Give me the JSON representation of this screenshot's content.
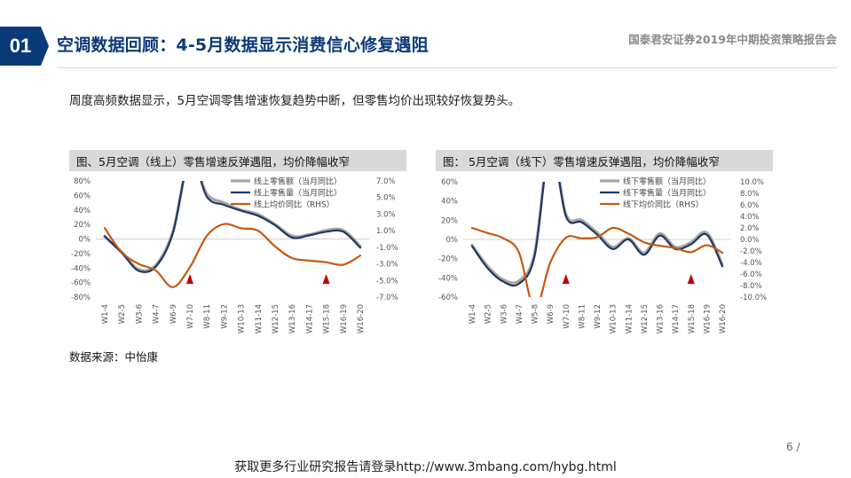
{
  "header": {
    "section_number": "01",
    "title": "空调数据回顾：4-5月数据显示消费信心修复遇阻",
    "report_name": "国泰君安证券2019年中期投资策略报告会"
  },
  "intro_text": "周度高频数据显示，5月空调零售增速恢复趋势中断，但零售均价出现较好恢复势头。",
  "source_text": "数据来源：中怡康",
  "page_number": "6 /",
  "footer_text": "获取更多行业研究报告请登录http://www.3mbang.com/hybg.html",
  "colors": {
    "amount": "#a6a6a6",
    "volume": "#1f3864",
    "price": "#c55a11",
    "marker": "#c00000",
    "brand": "#0b3a78"
  },
  "chart_data": [
    {
      "type": "line",
      "title": "图、5月空调（线上）零售增速反弹遇阻，均价降幅收窄",
      "x": [
        "W1-4",
        "W2-5",
        "W3-6",
        "W4-7",
        "W6-9",
        "W7-10",
        "W8-11",
        "W9-12",
        "W10-13",
        "W11-14",
        "W12-15",
        "W13-16",
        "W14-17",
        "W15-18",
        "W16-19",
        "W16-20"
      ],
      "left_axis": {
        "min": -80,
        "max": 80,
        "ticks": [
          "80%",
          "60%",
          "40%",
          "20%",
          "0%",
          "-20%",
          "-40%",
          "-60%",
          "-80%"
        ]
      },
      "right_axis": {
        "min": -7,
        "max": 7,
        "ticks": [
          "7.0%",
          "5.0%",
          "3.0%",
          "1.0%",
          "-1.0%",
          "-3.0%",
          "-5.0%",
          "-7.0%"
        ]
      },
      "series": [
        {
          "name": "线上零售额（当月同比）",
          "axis": "left",
          "values": [
            3,
            -18,
            -42,
            -36,
            10,
            110,
            62,
            50,
            40,
            34,
            20,
            4,
            6,
            12,
            12,
            -10
          ]
        },
        {
          "name": "线上零售量（当月同比）",
          "axis": "left",
          "values": [
            4,
            -19,
            -44,
            -38,
            8,
            112,
            58,
            47,
            39,
            32,
            19,
            2,
            5,
            10,
            10,
            -12
          ]
        },
        {
          "name": "线上均价同比（RHS）",
          "axis": "right",
          "values": [
            1.3,
            -1.6,
            -3.0,
            -3.8,
            -5.8,
            -3.4,
            0.4,
            1.8,
            1.3,
            1.0,
            -0.9,
            -2.3,
            -2.6,
            -2.8,
            -3.1,
            -2.0
          ]
        }
      ],
      "markers": [
        {
          "at": "W7-10"
        },
        {
          "at": "W15-18"
        }
      ]
    },
    {
      "type": "line",
      "title": "图： 5月空调（线下）零售增速反弹遇阻，均价降幅收窄",
      "x": [
        "W1-4",
        "W2-5",
        "W3-6",
        "W4-7",
        "W5-8",
        "W6-9",
        "W7-10",
        "W8-11",
        "W9-12",
        "W10-13",
        "W11-14",
        "W12-15",
        "W13-16",
        "W14-17",
        "W15-18",
        "W16-19",
        "W16-20"
      ],
      "left_axis": {
        "min": -60,
        "max": 60,
        "ticks": [
          "60%",
          "40%",
          "20%",
          "0%",
          "-20%",
          "-40%",
          "-60%"
        ]
      },
      "right_axis": {
        "min": -10,
        "max": 10,
        "ticks": [
          "10.0%",
          "8.0%",
          "6.0%",
          "4.0%",
          "2.0%",
          "0.0%",
          "-2.0%",
          "-4.0%",
          "-6.0%",
          "-8.0%",
          "-10.0%"
        ]
      },
      "series": [
        {
          "name": "线下零售额（当月同比）",
          "axis": "left",
          "values": [
            -6,
            -28,
            -42,
            -43,
            -14,
            100,
            26,
            20,
            7,
            -8,
            1,
            -14,
            6,
            -8,
            -3,
            7,
            -26
          ]
        },
        {
          "name": "线下零售量（当月同比）",
          "axis": "left",
          "values": [
            -7,
            -30,
            -44,
            -46,
            -17,
            98,
            24,
            18,
            5,
            -10,
            0,
            -16,
            4,
            -10,
            -5,
            5,
            -28
          ]
        },
        {
          "name": "线下均价同比（RHS）",
          "axis": "right",
          "values": [
            2.0,
            1.1,
            0.2,
            -2.3,
            -12.0,
            -4.0,
            0.3,
            0.2,
            0.4,
            2.0,
            1.0,
            -0.5,
            -1.1,
            -1.5,
            -2.2,
            -1.0,
            -2.3
          ]
        }
      ],
      "markers": [
        {
          "at": "W7-10"
        },
        {
          "at": "W15-18"
        }
      ]
    }
  ]
}
